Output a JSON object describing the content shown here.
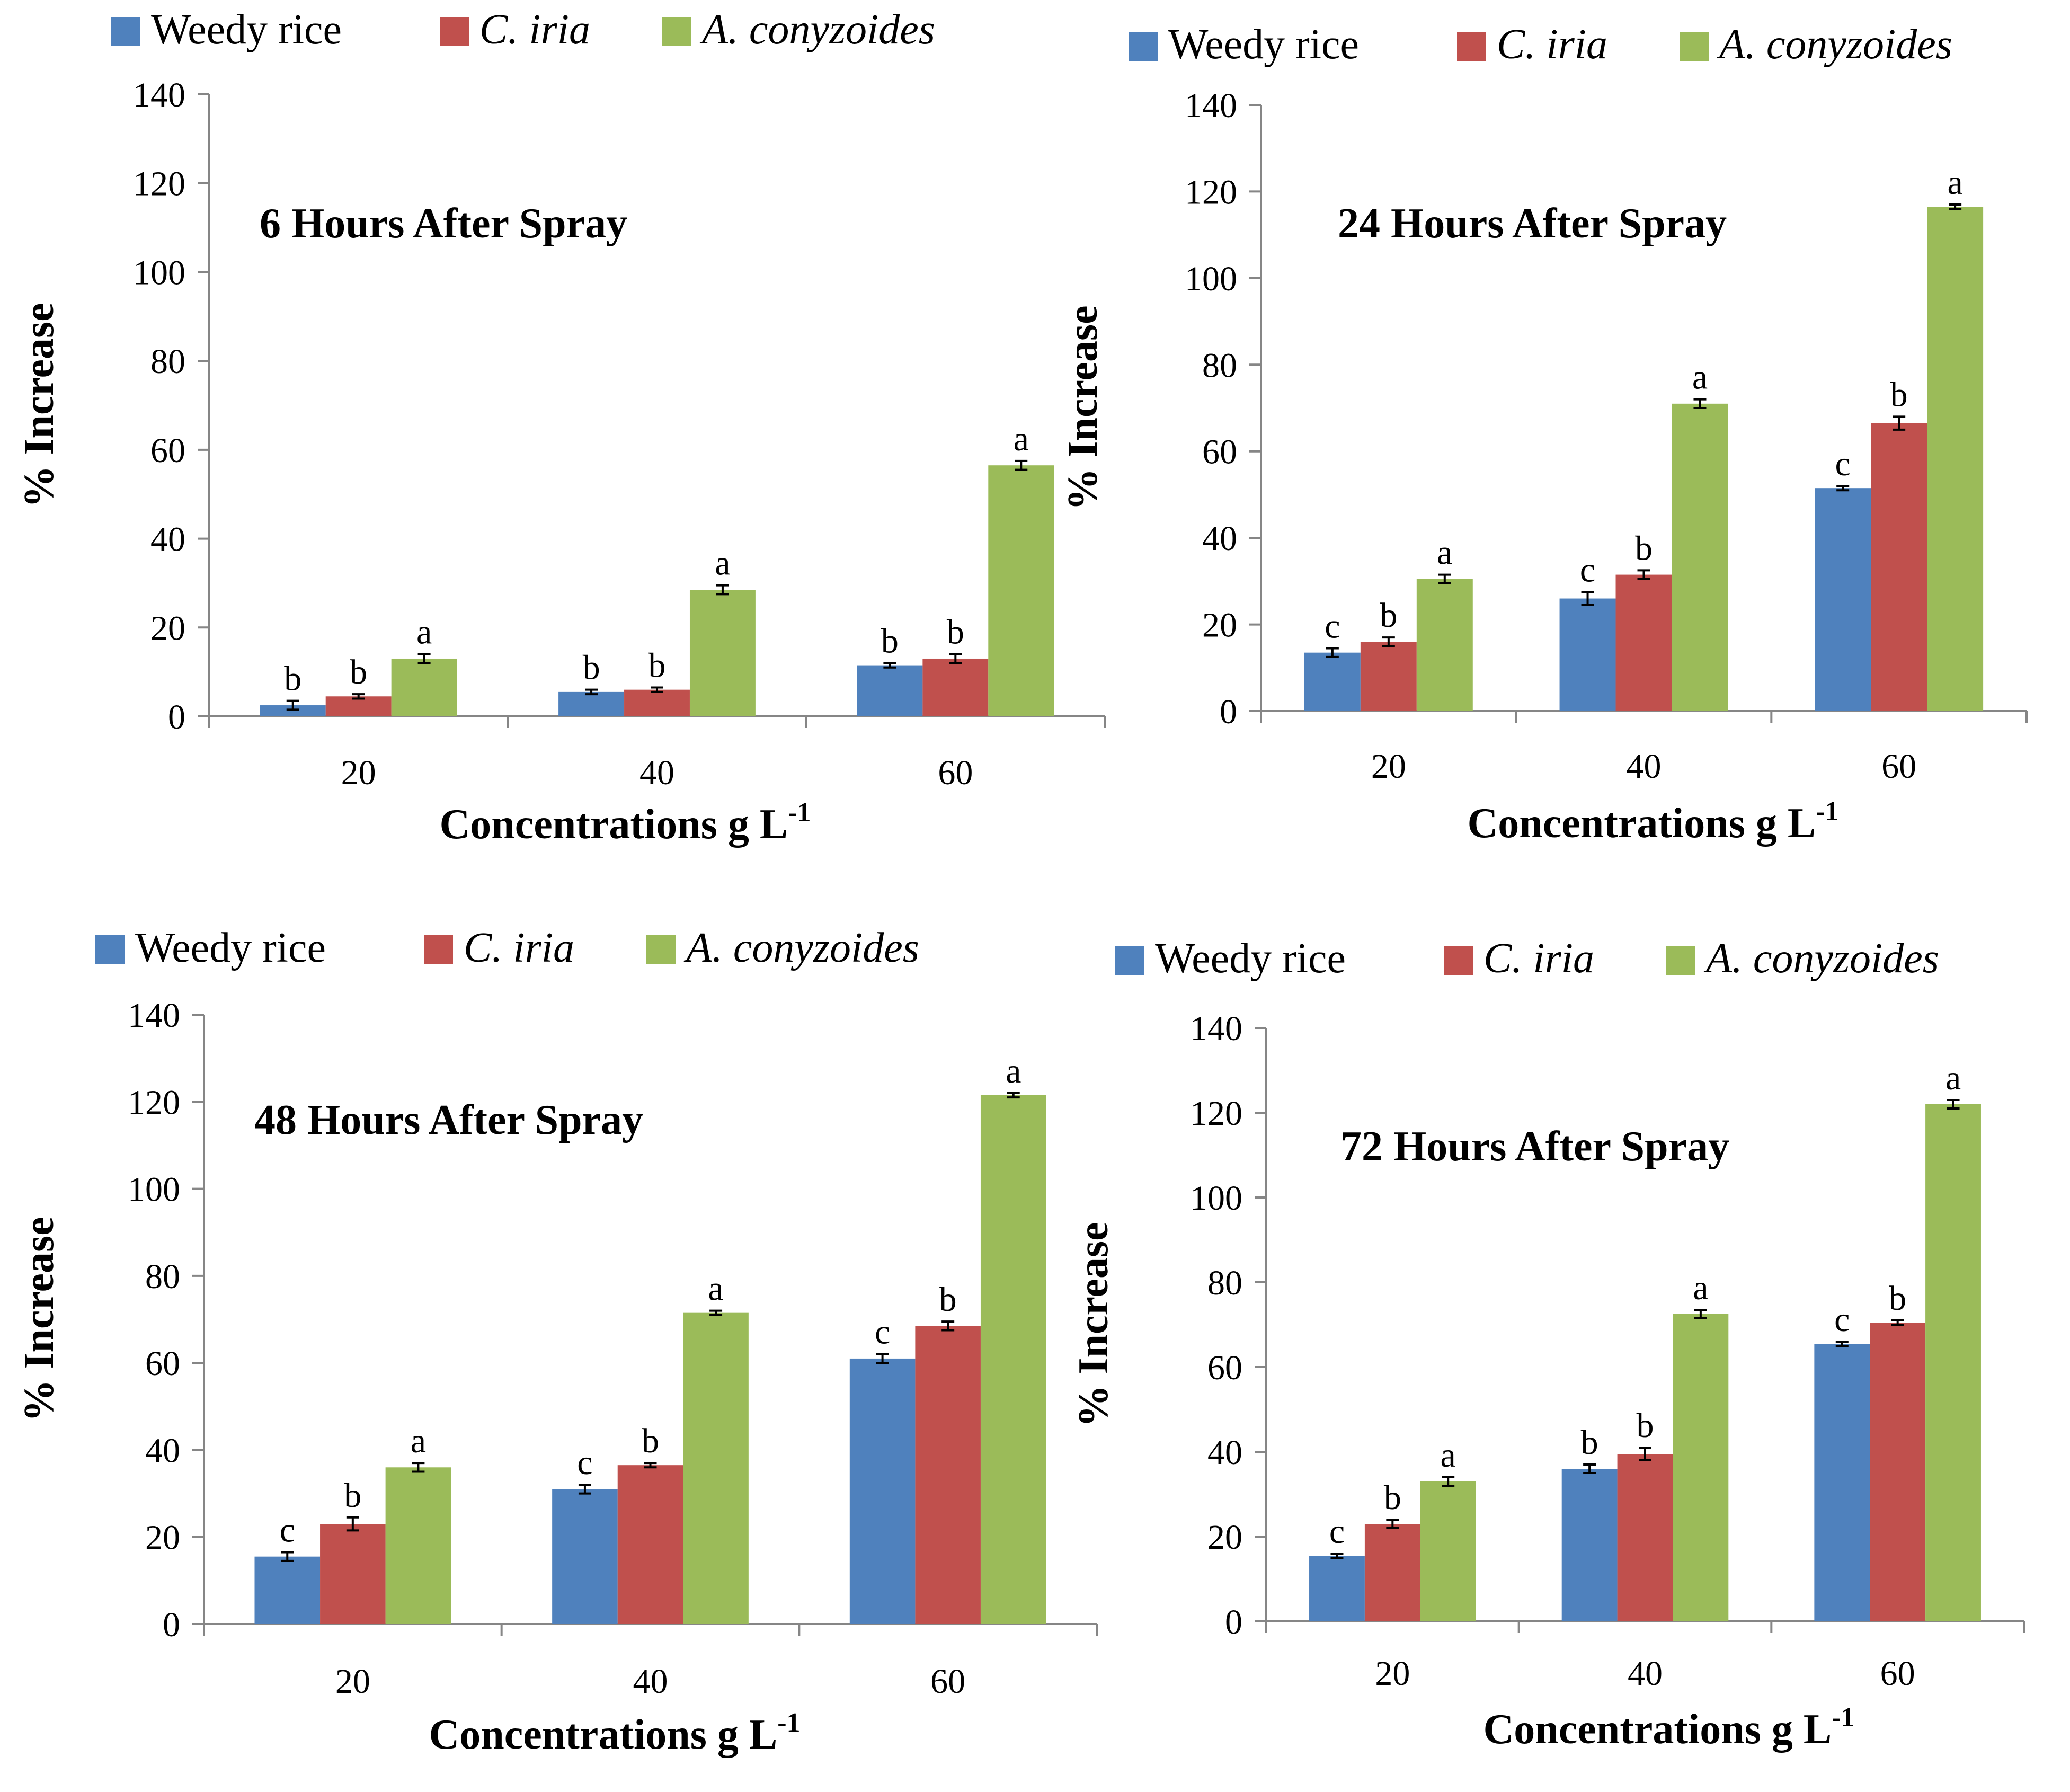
{
  "legend_labels": [
    "Weedy rice",
    "C. iria",
    "A. conyzoides"
  ],
  "colors": {
    "Weedy rice": "#4f81bd",
    "C. iria": "#c0504d",
    "A. conyzoides": "#9bbb59"
  },
  "chart_data": [
    {
      "type": "bar",
      "title": "6 Hours After Spray",
      "xlabel": "Concentrations g L",
      "xlabel_sup": "-1",
      "ylabel": "% Increase",
      "ylim": [
        0,
        140
      ],
      "yticks": [
        0,
        20,
        40,
        60,
        80,
        100,
        120,
        140
      ],
      "categories": [
        "20",
        "40",
        "60"
      ],
      "series": [
        {
          "name": "Weedy rice",
          "values": [
            2.5,
            5.5,
            11.5
          ],
          "errors": [
            1.0,
            0.5,
            0.5
          ],
          "letters": [
            "b",
            "b",
            "b"
          ]
        },
        {
          "name": "C. iria",
          "values": [
            4.5,
            6.0,
            13.0
          ],
          "errors": [
            0.5,
            0.5,
            1.0
          ],
          "letters": [
            "b",
            "b",
            "b"
          ]
        },
        {
          "name": "A. conyzoides",
          "values": [
            13.0,
            28.5,
            56.5
          ],
          "errors": [
            1.0,
            1.0,
            1.0
          ],
          "letters": [
            "a",
            "a",
            "a"
          ]
        }
      ]
    },
    {
      "type": "bar",
      "title": "24 Hours After Spray",
      "xlabel": "Concentrations g L",
      "xlabel_sup": "-1",
      "ylabel": "% Increase",
      "ylim": [
        0,
        140
      ],
      "yticks": [
        0,
        20,
        40,
        60,
        80,
        100,
        120,
        140
      ],
      "categories": [
        "20",
        "40",
        "60"
      ],
      "series": [
        {
          "name": "Weedy rice",
          "values": [
            13.5,
            26.0,
            51.5
          ],
          "errors": [
            1.0,
            1.5,
            0.5
          ],
          "letters": [
            "c",
            "c",
            "c"
          ]
        },
        {
          "name": "C. iria",
          "values": [
            16.0,
            31.5,
            66.5
          ],
          "errors": [
            1.0,
            1.0,
            1.5
          ],
          "letters": [
            "b",
            "b",
            "b"
          ]
        },
        {
          "name": "A. conyzoides",
          "values": [
            30.5,
            71.0,
            116.5
          ],
          "errors": [
            1.0,
            1.0,
            0.5
          ],
          "letters": [
            "a",
            "a",
            "a"
          ]
        }
      ]
    },
    {
      "type": "bar",
      "title": "48 Hours After Spray",
      "xlabel": "Concentrations g L",
      "xlabel_sup": "-1",
      "ylabel": "% Increase",
      "ylim": [
        0,
        140
      ],
      "yticks": [
        0,
        20,
        40,
        60,
        80,
        100,
        120,
        140
      ],
      "categories": [
        "20",
        "40",
        "60"
      ],
      "series": [
        {
          "name": "Weedy rice",
          "values": [
            15.5,
            31.0,
            61.0
          ],
          "errors": [
            1.0,
            1.0,
            1.0
          ],
          "letters": [
            "c",
            "c",
            "c"
          ]
        },
        {
          "name": "C. iria",
          "values": [
            23.0,
            36.5,
            68.5
          ],
          "errors": [
            1.5,
            0.5,
            1.0
          ],
          "letters": [
            "b",
            "b",
            "b"
          ]
        },
        {
          "name": "A. conyzoides",
          "values": [
            36.0,
            71.5,
            121.5
          ],
          "errors": [
            1.0,
            0.5,
            0.5
          ],
          "letters": [
            "a",
            "a",
            "a"
          ]
        }
      ]
    },
    {
      "type": "bar",
      "title": "72 Hours After Spray",
      "xlabel": "Concentrations g L",
      "xlabel_sup": "-1",
      "ylabel": "% Increase",
      "ylim": [
        0,
        140
      ],
      "yticks": [
        0,
        20,
        40,
        60,
        80,
        100,
        120,
        140
      ],
      "categories": [
        "20",
        "40",
        "60"
      ],
      "series": [
        {
          "name": "Weedy rice",
          "values": [
            15.5,
            36.0,
            65.5
          ],
          "errors": [
            0.5,
            1.0,
            0.5
          ],
          "letters": [
            "c",
            "b",
            "c"
          ]
        },
        {
          "name": "C. iria",
          "values": [
            23.0,
            39.5,
            70.5
          ],
          "errors": [
            1.0,
            1.5,
            0.5
          ],
          "letters": [
            "b",
            "b",
            "b"
          ]
        },
        {
          "name": "A. conyzoides",
          "values": [
            33.0,
            72.5,
            122.0
          ],
          "errors": [
            1.0,
            1.0,
            1.0
          ],
          "letters": [
            "a",
            "a",
            "a"
          ]
        }
      ]
    }
  ]
}
